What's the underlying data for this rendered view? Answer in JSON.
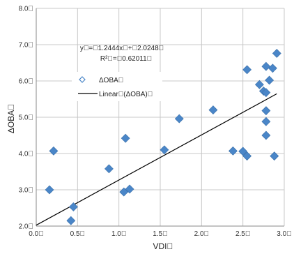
{
  "chart_data": {
    "type": "scatter",
    "x_axis": {
      "label": "VDI\u0000",
      "range": [
        0.0,
        3.0
      ],
      "ticks": [
        0.0,
        0.5,
        1.0,
        1.5,
        2.0,
        2.5,
        3.0
      ],
      "tick_labels": [
        "0.0\u0000",
        "0.5\u0000",
        "1.0\u0000",
        "1.5\u0000",
        "2.0\u0000",
        "2.5\u0000",
        "3.0\u0000"
      ]
    },
    "y_axis": {
      "label": "ΔOBA\u0000",
      "range": [
        2.0,
        8.0
      ],
      "ticks": [
        2.0,
        3.0,
        4.0,
        5.0,
        6.0,
        7.0,
        8.0
      ],
      "tick_labels": [
        "2.0\u0000",
        "3.0\u0000",
        "4.0\u0000",
        "5.0\u0000",
        "6.0\u0000",
        "7.0\u0000",
        "8.0\u0000"
      ]
    },
    "grid": true,
    "series": [
      {
        "name": "ΔOBA\u0000",
        "marker": "diamond",
        "color": "#4a86c8",
        "points": [
          [
            0.16,
            3.0
          ],
          [
            0.21,
            4.07
          ],
          [
            0.42,
            2.15
          ],
          [
            0.45,
            2.53
          ],
          [
            0.88,
            3.58
          ],
          [
            1.06,
            2.94
          ],
          [
            1.08,
            4.42
          ],
          [
            1.13,
            3.02
          ],
          [
            1.55,
            4.1
          ],
          [
            1.73,
            4.96
          ],
          [
            2.14,
            5.2
          ],
          [
            2.38,
            4.07
          ],
          [
            2.5,
            4.06
          ],
          [
            2.55,
            3.93
          ],
          [
            2.55,
            6.31
          ],
          [
            2.7,
            5.9
          ],
          [
            2.75,
            5.72
          ],
          [
            2.78,
            5.68
          ],
          [
            2.78,
            6.4
          ],
          [
            2.78,
            5.18
          ],
          [
            2.78,
            4.88
          ],
          [
            2.78,
            4.5
          ],
          [
            2.82,
            6.02
          ],
          [
            2.86,
            6.35
          ],
          [
            2.88,
            3.93
          ],
          [
            2.91,
            6.76
          ]
        ]
      }
    ],
    "trendline": {
      "name": "Linear\u0000(ΔOBA)\u0000",
      "type": "linear",
      "slope": 1.2444,
      "intercept": 2.0248,
      "x_start": 0.0,
      "x_end": 2.91,
      "color": "#000000"
    },
    "annotations": [
      "y\u0000=\u00001.2444x\u0000+\u00002.0248\u0000",
      "R²\u0000=\u00000.62011\u0000"
    ],
    "legend": {
      "placement": "upper-left",
      "entries": [
        "ΔOBA\u0000",
        "Linear\u0000(ΔOBA)\u0000"
      ]
    }
  }
}
